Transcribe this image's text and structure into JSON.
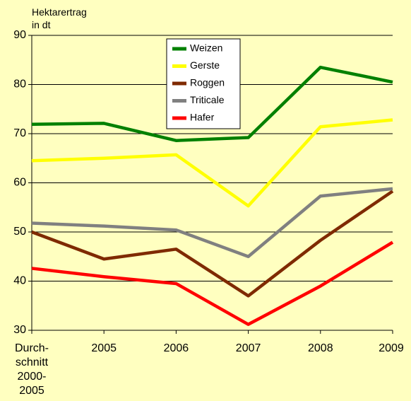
{
  "chart_data": {
    "type": "line",
    "y_label": "Hektarertrag\nin dt",
    "categories": [
      "Durch-\nschnitt\n2000-\n2005",
      "2005",
      "2006",
      "2007",
      "2008",
      "2009"
    ],
    "series": [
      {
        "name": "Weizen",
        "color": "#008000",
        "values": [
          71.9,
          72.1,
          68.6,
          69.2,
          83.5,
          80.5
        ]
      },
      {
        "name": "Gerste",
        "color": "#ffff00",
        "values": [
          64.5,
          65.0,
          65.7,
          55.3,
          71.4,
          72.8
        ]
      },
      {
        "name": "Roggen",
        "color": "#7f2a00",
        "values": [
          50.0,
          44.5,
          46.5,
          37.0,
          48.3,
          58.3
        ]
      },
      {
        "name": "Triticale",
        "color": "#808080",
        "values": [
          51.8,
          51.2,
          50.4,
          45.0,
          57.3,
          58.8
        ]
      },
      {
        "name": "Hafer",
        "color": "#ff0000",
        "values": [
          42.6,
          40.9,
          39.5,
          31.2,
          39.0,
          47.9
        ]
      }
    ],
    "ylim": [
      30,
      90
    ],
    "yticks": [
      30,
      40,
      50,
      60,
      70,
      80,
      90
    ],
    "grid": true,
    "legend": "top"
  }
}
